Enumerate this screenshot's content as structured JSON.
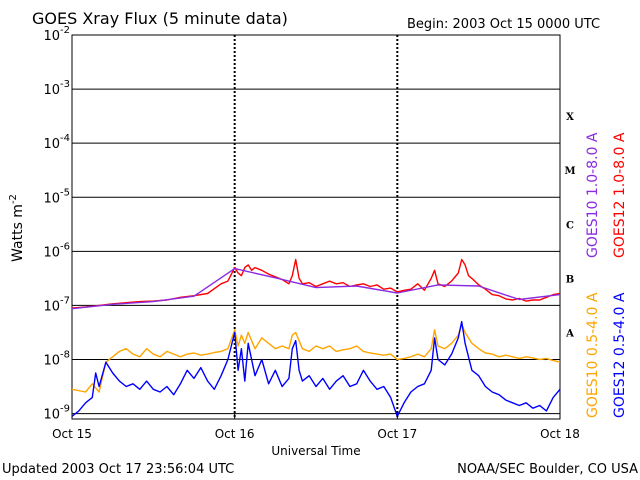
{
  "header": {
    "title": "GOES Xray Flux (5 minute data)",
    "begin": "Begin:  2003 Oct 15 0000 UTC"
  },
  "footer": {
    "updated": "Updated 2003 Oct 17 23:56:04 UTC",
    "credit": "NOAA/SEC Boulder, CO USA"
  },
  "colors": {
    "goes12_long": "#ff0000",
    "goes10_long": "#8a2be2",
    "goes10_short": "#ffa500",
    "goes12_short": "#0000ff",
    "grid": "#000000"
  },
  "chart_data": {
    "type": "line",
    "title": "GOES Xray Flux (5 minute data)",
    "xlabel": "Universal Time",
    "ylabel": "Watts m",
    "ylabel_sup": "-2",
    "y_scale": "log",
    "ylim": [
      -9.1,
      -2
    ],
    "xlim": [
      0,
      72
    ],
    "x_unit": "hours since 2003 Oct 15 0000 UTC",
    "x_ticks": [
      {
        "x": 0,
        "label": "Oct 15"
      },
      {
        "x": 24,
        "label": "Oct 16"
      },
      {
        "x": 48,
        "label": "Oct 17"
      },
      {
        "x": 72,
        "label": "Oct 18"
      }
    ],
    "y_ticks": [
      {
        "exp": -2,
        "label": "10",
        "sup": "-2"
      },
      {
        "exp": -3,
        "label": "10",
        "sup": "-3"
      },
      {
        "exp": -4,
        "label": "10",
        "sup": "-4"
      },
      {
        "exp": -5,
        "label": "10",
        "sup": "-5"
      },
      {
        "exp": -6,
        "label": "10",
        "sup": "-6"
      },
      {
        "exp": -7,
        "label": "10",
        "sup": "-7"
      },
      {
        "exp": -8,
        "label": "10",
        "sup": "-8"
      },
      {
        "exp": -9,
        "label": "10",
        "sup": "-9"
      }
    ],
    "flare_classes": [
      {
        "label": "X",
        "exp": -3.5
      },
      {
        "label": "M",
        "exp": -4.5
      },
      {
        "label": "C",
        "exp": -5.5
      },
      {
        "label": "B",
        "exp": -6.5
      },
      {
        "label": "A",
        "exp": -7.5
      }
    ],
    "legend": [
      {
        "name": "GOES10 1.0-8.0 A",
        "color": "#8a2be2"
      },
      {
        "name": "GOES12 1.0-8.0 A",
        "color": "#ff0000"
      },
      {
        "name": "GOES10 0.5-4.0 A",
        "color": "#ffa500"
      },
      {
        "name": "GOES12 0.5-4.0 A",
        "color": "#0000ff"
      }
    ],
    "series": [
      {
        "name": "GOES12 1.0-8.0 A",
        "color": "#ff0000",
        "points": [
          [
            0,
            -7.05
          ],
          [
            2,
            -7.03
          ],
          [
            4,
            -7.0
          ],
          [
            6,
            -6.97
          ],
          [
            8,
            -6.95
          ],
          [
            10,
            -6.93
          ],
          [
            12,
            -6.92
          ],
          [
            14,
            -6.9
          ],
          [
            16,
            -6.85
          ],
          [
            18,
            -6.82
          ],
          [
            20,
            -6.78
          ],
          [
            22,
            -6.6
          ],
          [
            23,
            -6.55
          ],
          [
            24,
            -6.3
          ],
          [
            24.5,
            -6.4
          ],
          [
            25,
            -6.45
          ],
          [
            25.5,
            -6.3
          ],
          [
            26,
            -6.25
          ],
          [
            26.5,
            -6.35
          ],
          [
            27,
            -6.3
          ],
          [
            28,
            -6.35
          ],
          [
            29,
            -6.42
          ],
          [
            30,
            -6.47
          ],
          [
            31,
            -6.52
          ],
          [
            32,
            -6.6
          ],
          [
            32.5,
            -6.45
          ],
          [
            33,
            -6.15
          ],
          [
            33.5,
            -6.5
          ],
          [
            34,
            -6.6
          ],
          [
            35,
            -6.58
          ],
          [
            36,
            -6.65
          ],
          [
            37,
            -6.6
          ],
          [
            38,
            -6.55
          ],
          [
            39,
            -6.6
          ],
          [
            40,
            -6.58
          ],
          [
            41,
            -6.65
          ],
          [
            42,
            -6.62
          ],
          [
            43,
            -6.6
          ],
          [
            44,
            -6.65
          ],
          [
            45,
            -6.62
          ],
          [
            46,
            -6.7
          ],
          [
            47,
            -6.68
          ],
          [
            48,
            -6.75
          ],
          [
            49,
            -6.72
          ],
          [
            50,
            -6.7
          ],
          [
            51,
            -6.6
          ],
          [
            52,
            -6.72
          ],
          [
            53,
            -6.5
          ],
          [
            53.5,
            -6.35
          ],
          [
            54,
            -6.6
          ],
          [
            55,
            -6.65
          ],
          [
            56,
            -6.55
          ],
          [
            57,
            -6.4
          ],
          [
            57.5,
            -6.15
          ],
          [
            58,
            -6.25
          ],
          [
            58.5,
            -6.45
          ],
          [
            59,
            -6.5
          ],
          [
            60,
            -6.62
          ],
          [
            61,
            -6.7
          ],
          [
            62,
            -6.8
          ],
          [
            63,
            -6.82
          ],
          [
            64,
            -6.88
          ],
          [
            65,
            -6.9
          ],
          [
            66,
            -6.87
          ],
          [
            67,
            -6.92
          ],
          [
            68,
            -6.9
          ],
          [
            69,
            -6.9
          ],
          [
            70,
            -6.85
          ],
          [
            71,
            -6.8
          ],
          [
            72,
            -6.78
          ]
        ]
      },
      {
        "name": "GOES10 1.0-8.0 A",
        "color": "#8a2be2",
        "points": [
          [
            0,
            -7.06
          ],
          [
            6,
            -6.98
          ],
          [
            12,
            -6.93
          ],
          [
            18,
            -6.83
          ],
          [
            24,
            -6.32
          ],
          [
            30,
            -6.49
          ],
          [
            36,
            -6.67
          ],
          [
            42,
            -6.64
          ],
          [
            48,
            -6.77
          ],
          [
            54,
            -6.62
          ],
          [
            60,
            -6.64
          ],
          [
            66,
            -6.89
          ],
          [
            72,
            -6.8
          ]
        ]
      },
      {
        "name": "GOES10 0.5-4.0 A",
        "color": "#ffa500",
        "points": [
          [
            0,
            -8.55
          ],
          [
            2,
            -8.6
          ],
          [
            3,
            -8.45
          ],
          [
            4,
            -8.6
          ],
          [
            5,
            -8.05
          ],
          [
            6,
            -7.95
          ],
          [
            7,
            -7.85
          ],
          [
            8,
            -7.8
          ],
          [
            9,
            -7.9
          ],
          [
            10,
            -7.95
          ],
          [
            11,
            -7.8
          ],
          [
            12,
            -7.9
          ],
          [
            13,
            -7.95
          ],
          [
            14,
            -7.85
          ],
          [
            15,
            -7.9
          ],
          [
            16,
            -7.95
          ],
          [
            17,
            -7.9
          ],
          [
            18,
            -7.88
          ],
          [
            19,
            -7.92
          ],
          [
            20,
            -7.9
          ],
          [
            21,
            -7.87
          ],
          [
            22,
            -7.85
          ],
          [
            23,
            -7.8
          ],
          [
            24,
            -7.45
          ],
          [
            24.5,
            -7.75
          ],
          [
            25,
            -7.55
          ],
          [
            25.5,
            -7.7
          ],
          [
            26,
            -7.5
          ],
          [
            27,
            -7.8
          ],
          [
            28,
            -7.6
          ],
          [
            29,
            -7.7
          ],
          [
            30,
            -7.8
          ],
          [
            31,
            -7.75
          ],
          [
            32,
            -7.8
          ],
          [
            32.5,
            -7.55
          ],
          [
            33,
            -7.5
          ],
          [
            34,
            -7.8
          ],
          [
            35,
            -7.85
          ],
          [
            36,
            -7.75
          ],
          [
            37,
            -7.8
          ],
          [
            38,
            -7.75
          ],
          [
            39,
            -7.85
          ],
          [
            40,
            -7.82
          ],
          [
            41,
            -7.8
          ],
          [
            42,
            -7.75
          ],
          [
            43,
            -7.85
          ],
          [
            44,
            -7.88
          ],
          [
            45,
            -7.9
          ],
          [
            46,
            -7.92
          ],
          [
            47,
            -7.9
          ],
          [
            48,
            -8.0
          ],
          [
            49,
            -7.98
          ],
          [
            50,
            -7.95
          ],
          [
            51,
            -7.9
          ],
          [
            52,
            -7.95
          ],
          [
            53,
            -7.8
          ],
          [
            53.5,
            -7.45
          ],
          [
            54,
            -7.75
          ],
          [
            55,
            -7.8
          ],
          [
            56,
            -7.7
          ],
          [
            57,
            -7.55
          ],
          [
            57.5,
            -7.35
          ],
          [
            58,
            -7.5
          ],
          [
            59,
            -7.7
          ],
          [
            60,
            -7.8
          ],
          [
            61,
            -7.88
          ],
          [
            62,
            -7.9
          ],
          [
            63,
            -7.95
          ],
          [
            64,
            -7.92
          ],
          [
            65,
            -7.95
          ],
          [
            66,
            -7.98
          ],
          [
            67,
            -7.95
          ],
          [
            68,
            -7.97
          ],
          [
            69,
            -8.0
          ],
          [
            70,
            -7.98
          ],
          [
            71,
            -8.02
          ],
          [
            72,
            -8.05
          ]
        ]
      },
      {
        "name": "GOES12 0.5-4.0 A",
        "color": "#0000ff",
        "points": [
          [
            0,
            -9.05
          ],
          [
            1,
            -8.95
          ],
          [
            2,
            -8.8
          ],
          [
            3,
            -8.7
          ],
          [
            3.5,
            -8.25
          ],
          [
            4,
            -8.5
          ],
          [
            5,
            -8.05
          ],
          [
            6,
            -8.25
          ],
          [
            7,
            -8.4
          ],
          [
            8,
            -8.5
          ],
          [
            9,
            -8.45
          ],
          [
            10,
            -8.55
          ],
          [
            11,
            -8.4
          ],
          [
            12,
            -8.55
          ],
          [
            13,
            -8.6
          ],
          [
            14,
            -8.5
          ],
          [
            15,
            -8.65
          ],
          [
            16,
            -8.45
          ],
          [
            17,
            -8.2
          ],
          [
            18,
            -8.35
          ],
          [
            19,
            -8.15
          ],
          [
            20,
            -8.4
          ],
          [
            21,
            -8.55
          ],
          [
            22,
            -8.3
          ],
          [
            23,
            -8.0
          ],
          [
            24,
            -7.5
          ],
          [
            24.5,
            -8.2
          ],
          [
            25,
            -7.8
          ],
          [
            25.5,
            -8.4
          ],
          [
            26,
            -7.7
          ],
          [
            27,
            -8.3
          ],
          [
            28,
            -8.0
          ],
          [
            29,
            -8.45
          ],
          [
            30,
            -8.2
          ],
          [
            31,
            -8.5
          ],
          [
            32,
            -8.35
          ],
          [
            32.5,
            -7.8
          ],
          [
            33,
            -7.65
          ],
          [
            33.5,
            -8.2
          ],
          [
            34,
            -8.4
          ],
          [
            35,
            -8.3
          ],
          [
            36,
            -8.5
          ],
          [
            37,
            -8.35
          ],
          [
            38,
            -8.55
          ],
          [
            39,
            -8.4
          ],
          [
            40,
            -8.3
          ],
          [
            41,
            -8.5
          ],
          [
            42,
            -8.45
          ],
          [
            43,
            -8.2
          ],
          [
            44,
            -8.4
          ],
          [
            45,
            -8.55
          ],
          [
            46,
            -8.5
          ],
          [
            47,
            -8.7
          ],
          [
            48,
            -9.05
          ],
          [
            49,
            -8.8
          ],
          [
            50,
            -8.6
          ],
          [
            51,
            -8.5
          ],
          [
            52,
            -8.45
          ],
          [
            53,
            -8.2
          ],
          [
            53.5,
            -7.6
          ],
          [
            54,
            -8.0
          ],
          [
            55,
            -8.1
          ],
          [
            56,
            -7.9
          ],
          [
            57,
            -7.6
          ],
          [
            57.5,
            -7.3
          ],
          [
            58,
            -7.7
          ],
          [
            59,
            -8.2
          ],
          [
            60,
            -8.3
          ],
          [
            61,
            -8.5
          ],
          [
            62,
            -8.6
          ],
          [
            63,
            -8.65
          ],
          [
            64,
            -8.75
          ],
          [
            65,
            -8.8
          ],
          [
            66,
            -8.85
          ],
          [
            67,
            -8.8
          ],
          [
            68,
            -8.9
          ],
          [
            69,
            -8.85
          ],
          [
            70,
            -8.95
          ],
          [
            71,
            -8.7
          ],
          [
            72,
            -8.55
          ]
        ]
      }
    ]
  }
}
